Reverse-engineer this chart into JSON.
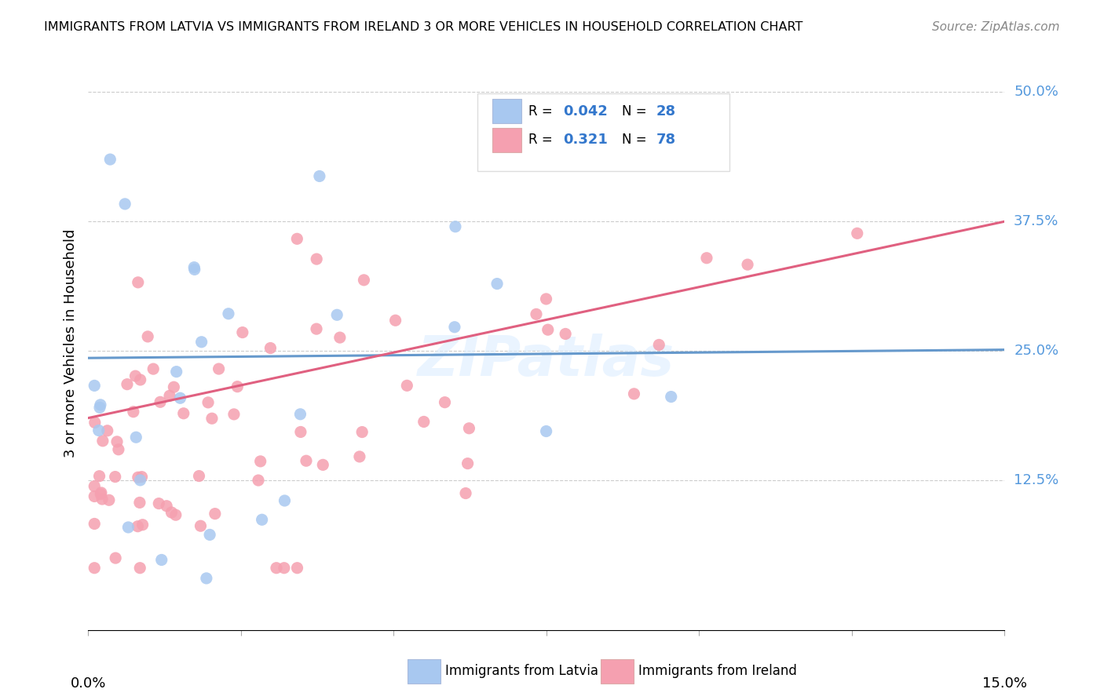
{
  "title": "IMMIGRANTS FROM LATVIA VS IMMIGRANTS FROM IRELAND 3 OR MORE VEHICLES IN HOUSEHOLD CORRELATION CHART",
  "source": "Source: ZipAtlas.com",
  "ylabel": "3 or more Vehicles in Household",
  "ytick_labels": [
    "12.5%",
    "25.0%",
    "37.5%",
    "50.0%"
  ],
  "ytick_values": [
    0.125,
    0.25,
    0.375,
    0.5
  ],
  "xlim": [
    0.0,
    0.15
  ],
  "ylim": [
    -0.02,
    0.535
  ],
  "latvia_color": "#a8c8f0",
  "ireland_color": "#f5a0b0",
  "latvia_line_color": "#6699cc",
  "ireland_line_color": "#e06080",
  "latvia_R": 0.042,
  "latvia_N": 28,
  "ireland_R": 0.321,
  "ireland_N": 78,
  "lv_line_x": [
    0.0,
    0.15
  ],
  "lv_line_y": [
    0.243,
    0.251
  ],
  "ir_line_x": [
    0.0,
    0.15
  ],
  "ir_line_y": [
    0.185,
    0.375
  ],
  "watermark": "ZIPatlas",
  "legend_label_1": "Immigrants from Latvia",
  "legend_label_2": "Immigrants from Ireland"
}
